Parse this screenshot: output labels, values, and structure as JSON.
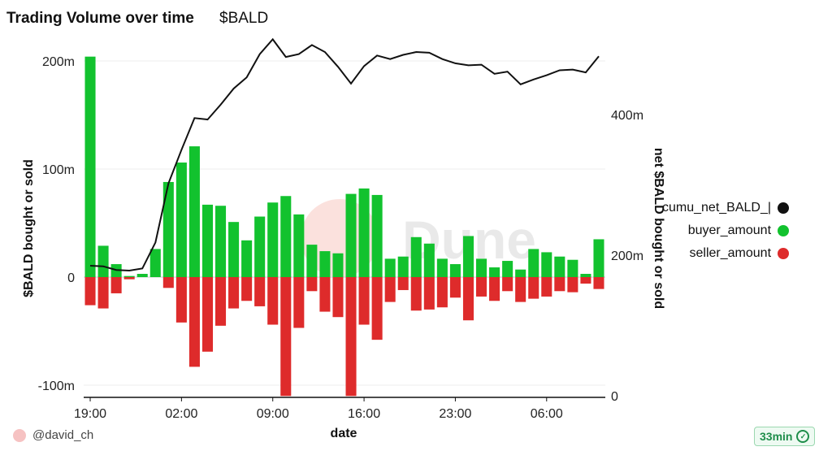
{
  "header": {
    "title": "Trading Volume over time",
    "subtitle": "$BALD"
  },
  "footer": {
    "author": "@david_ch",
    "refresh": "33min"
  },
  "watermark": "Dune",
  "chart_data": {
    "type": "bar",
    "xlabel": "date",
    "ylabel": "$BALD bought or sold",
    "y2label": "net $BALD bought or sold",
    "x_ticks": [
      "19:00",
      "02:00",
      "09:00",
      "16:00",
      "23:00",
      "06:00"
    ],
    "y_ticks": [
      "200m",
      "100m",
      "0",
      "-100m"
    ],
    "y_tick_values": [
      200,
      100,
      0,
      -100
    ],
    "y2_ticks": [
      "400m",
      "200m",
      "0"
    ],
    "y2_tick_values": [
      400,
      200,
      0
    ],
    "ylim": [
      -110,
      205
    ],
    "y2lim": [
      0,
      550
    ],
    "grid": true,
    "legend_position": "right",
    "colors": {
      "buyer": "#12c22e",
      "seller": "#de2b2b",
      "cumu": "#111111"
    },
    "series": [
      {
        "name": "cumu_net_BALD_|",
        "type": "line",
        "values": [
          185,
          184,
          179,
          178,
          181,
          218,
          302,
          350,
          395,
          393,
          414,
          437,
          453,
          486,
          507,
          482,
          486,
          499,
          489,
          468,
          444,
          469,
          484,
          479,
          485,
          489,
          488,
          479,
          473,
          470,
          471,
          458,
          461,
          443,
          450,
          456,
          463,
          464,
          460,
          483
        ]
      },
      {
        "name": "buyer_amount",
        "type": "bar",
        "values": [
          204,
          29,
          12,
          1,
          3,
          26,
          88,
          106,
          121,
          67,
          66,
          51,
          34,
          56,
          69,
          75,
          58,
          30,
          24,
          22,
          77,
          82,
          76,
          17,
          19,
          37,
          31,
          17,
          12,
          38,
          17,
          9,
          15,
          7,
          26,
          23,
          19,
          16,
          3,
          35
        ]
      },
      {
        "name": "seller_amount",
        "type": "bar",
        "values": [
          -26,
          -29,
          -15,
          -2,
          0,
          0,
          -10,
          -42,
          -83,
          -69,
          -45,
          -29,
          -22,
          -27,
          -44,
          -110,
          -47,
          -13,
          -32,
          -37,
          -110,
          -44,
          -58,
          -23,
          -12,
          -31,
          -30,
          -28,
          -19,
          -40,
          -18,
          -22,
          -13,
          -23,
          -20,
          -18,
          -13,
          -14,
          -6,
          -11
        ]
      }
    ]
  }
}
